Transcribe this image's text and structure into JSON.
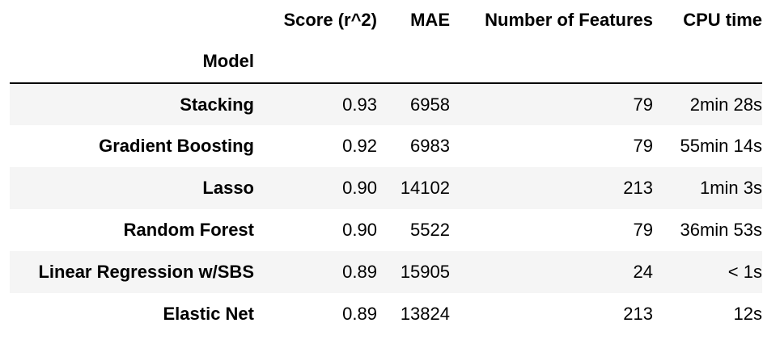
{
  "table": {
    "columns": [
      "Score (r^2)",
      "MAE",
      "Number of Features",
      "CPU time"
    ],
    "index_name": "Model",
    "rows": [
      {
        "model": "Stacking",
        "score": "0.93",
        "mae": "6958",
        "features": "79",
        "cpu": "2min 28s"
      },
      {
        "model": "Gradient Boosting",
        "score": "0.92",
        "mae": "6983",
        "features": "79",
        "cpu": "55min 14s"
      },
      {
        "model": "Lasso",
        "score": "0.90",
        "mae": "14102",
        "features": "213",
        "cpu": "1min 3s"
      },
      {
        "model": "Random Forest",
        "score": "0.90",
        "mae": "5522",
        "features": "79",
        "cpu": "36min 53s"
      },
      {
        "model": "Linear Regression w/SBS",
        "score": "0.89",
        "mae": "15905",
        "features": "24",
        "cpu": "< 1s"
      },
      {
        "model": "Elastic Net",
        "score": "0.89",
        "mae": "13824",
        "features": "213",
        "cpu": "12s"
      }
    ]
  }
}
